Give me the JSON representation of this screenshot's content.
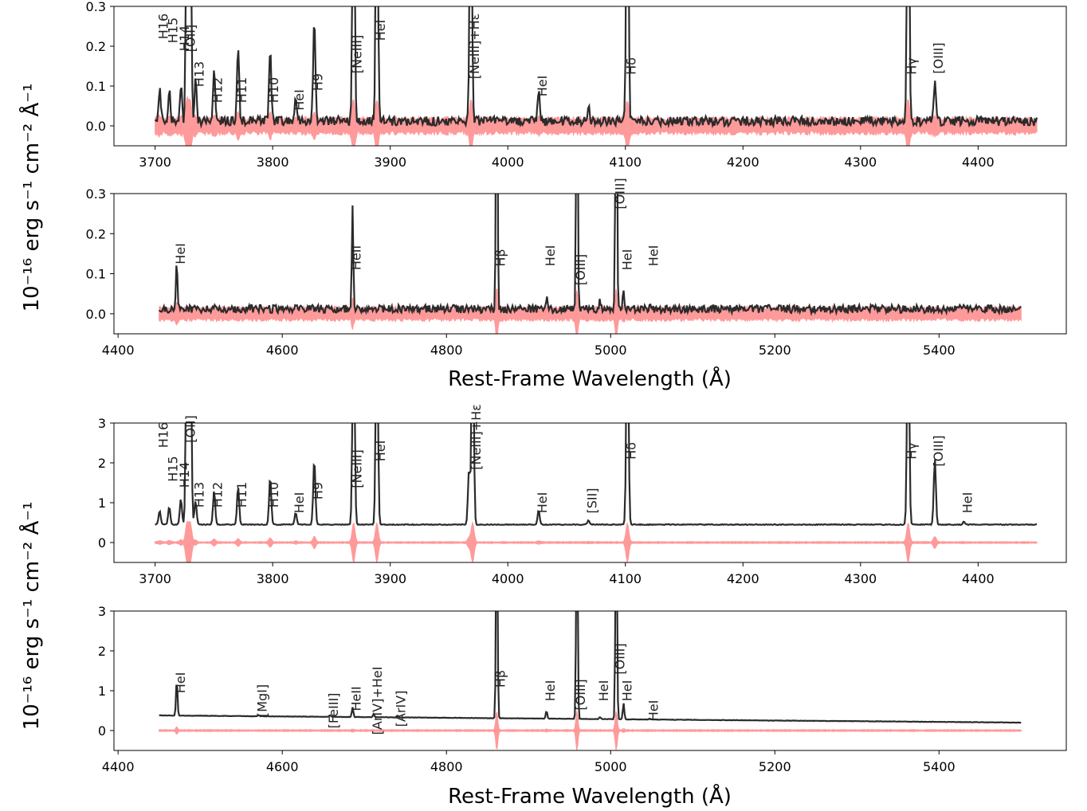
{
  "figure": {
    "ylabel": "10⁻¹⁶ erg s⁻¹ cm⁻² Å⁻¹",
    "xlabel": "Rest-Frame Wavelength (Å)"
  },
  "colors": {
    "spectrum": "#2b2b2b",
    "error": "#ff9a9a",
    "axes": "#000000",
    "background": "#ffffff"
  },
  "chart_data": [
    {
      "type": "line",
      "group": "top",
      "xlim": [
        3665,
        4475
      ],
      "ylim": [
        -0.05,
        0.3
      ],
      "xticks": [
        "3700",
        "3800",
        "3900",
        "4000",
        "4100",
        "4200",
        "4300",
        "4400"
      ],
      "yticks": [
        "0.0",
        "0.1",
        "0.2",
        "0.3"
      ],
      "continuum": 0.012,
      "noise": 0.012,
      "error_level": 0.018,
      "x_range": [
        3700,
        4450
      ],
      "lines": [
        {
          "label": "H16",
          "x": 3703.9,
          "peak": 0.085,
          "ly": 0.25
        },
        {
          "label": "H15",
          "x": 3712.0,
          "peak": 0.08,
          "ly": 0.24
        },
        {
          "label": "H14",
          "x": 3721.9,
          "peak": 0.09,
          "ly": 0.22
        },
        {
          "label": "[OII]",
          "x": 3727.1,
          "peak": 0.6,
          "ly": 0.22
        },
        {
          "label": "",
          "x": 3729.9,
          "peak": 0.6,
          "ly": 0
        },
        {
          "label": "H13",
          "x": 3734.4,
          "peak": 0.1,
          "ly": 0.13
        },
        {
          "label": "H12",
          "x": 3750.2,
          "peak": 0.12,
          "ly": 0.09
        },
        {
          "label": "H11",
          "x": 3770.6,
          "peak": 0.18,
          "ly": 0.09
        },
        {
          "label": "H10",
          "x": 3797.9,
          "peak": 0.18,
          "ly": 0.09
        },
        {
          "label": "HeI",
          "x": 3819.6,
          "peak": 0.05,
          "ly": 0.065
        },
        {
          "label": "H9",
          "x": 3835.4,
          "peak": 0.27,
          "ly": 0.11
        },
        {
          "label": "[NeIII]",
          "x": 3868.8,
          "peak": 0.8,
          "ly": 0.18
        },
        {
          "label": "HeI",
          "x": 3888.6,
          "peak": 0.8,
          "ly": 0.24
        },
        {
          "label": "[NeIII]+Hε",
          "x": 3968.5,
          "peak": 0.8,
          "ly": 0.2
        },
        {
          "label": "HeI",
          "x": 4026.2,
          "peak": 0.075,
          "ly": 0.1
        },
        {
          "label": "",
          "x": 4068.6,
          "peak": 0.035,
          "ly": 0
        },
        {
          "label": "Hδ",
          "x": 4101.7,
          "peak": 0.9,
          "ly": 0.15
        },
        {
          "label": "Hγ",
          "x": 4340.5,
          "peak": 0.9,
          "ly": 0.15
        },
        {
          "label": "[OIII]",
          "x": 4363.2,
          "peak": 0.105,
          "ly": 0.17
        }
      ]
    },
    {
      "type": "line",
      "group": "top",
      "xlim": [
        4395,
        5555
      ],
      "ylim": [
        -0.05,
        0.3
      ],
      "xticks": [
        "4400",
        "4600",
        "4800",
        "5000",
        "5200",
        "5400"
      ],
      "yticks": [
        "0.0",
        "0.1",
        "0.2",
        "0.3"
      ],
      "continuum": 0.012,
      "noise": 0.01,
      "error_level": 0.015,
      "x_range": [
        4450,
        5500
      ],
      "lines": [
        {
          "label": "HeI",
          "x": 4471.5,
          "peak": 0.12,
          "ly": 0.15
        },
        {
          "label": "HeII",
          "x": 4685.7,
          "peak": 0.26,
          "ly": 0.14
        },
        {
          "label": "Hβ",
          "x": 4861.3,
          "peak": 0.9,
          "ly": 0.14
        },
        {
          "label": "HeI",
          "x": 4921.9,
          "peak": 0.03,
          "ly": 0.145
        },
        {
          "label": "[OIII]",
          "x": 4958.9,
          "peak": 0.9,
          "ly": 0.11
        },
        {
          "label": "",
          "x": 4987.0,
          "peak": 0.03,
          "ly": 0
        },
        {
          "label": "HeI",
          "x": 5015.7,
          "peak": 0.05,
          "ly": 0.135
        },
        {
          "label": "[OIII]",
          "x": 5006.8,
          "peak": 0.9,
          "ly": 0.3
        },
        {
          "label": "HeI",
          "x": 5047.7,
          "peak": 0.02,
          "ly": 0.145
        }
      ]
    },
    {
      "type": "line",
      "group": "bottom",
      "xlim": [
        3665,
        4475
      ],
      "ylim": [
        -0.5,
        3
      ],
      "xticks": [
        "3700",
        "3800",
        "3900",
        "4000",
        "4100",
        "4200",
        "4300",
        "4400"
      ],
      "yticks": [
        "0",
        "1",
        "2",
        "3"
      ],
      "continuum": 0.45,
      "noise": 0.01,
      "error_level": 0.02,
      "x_range": [
        3700,
        4450
      ],
      "lines": [
        {
          "label": "H16",
          "x": 3703.9,
          "peak": 0.35,
          "ly": 2.7
        },
        {
          "label": "H15",
          "x": 3712.0,
          "peak": 0.45,
          "ly": 1.85
        },
        {
          "label": "H14",
          "x": 3721.9,
          "peak": 0.65,
          "ly": 1.7
        },
        {
          "label": "[OII]",
          "x": 3727.1,
          "peak": 6,
          "ly": 2.85
        },
        {
          "label": "",
          "x": 3729.9,
          "peak": 6,
          "ly": 0
        },
        {
          "label": "H13",
          "x": 3734.4,
          "peak": 0.6,
          "ly": 1.2
        },
        {
          "label": "H12",
          "x": 3750.2,
          "peak": 0.85,
          "ly": 1.2
        },
        {
          "label": "H11",
          "x": 3770.6,
          "peak": 0.95,
          "ly": 1.2
        },
        {
          "label": "H10",
          "x": 3797.9,
          "peak": 1.2,
          "ly": 1.2
        },
        {
          "label": "HeI",
          "x": 3819.6,
          "peak": 0.3,
          "ly": 1.0
        },
        {
          "label": "H9",
          "x": 3835.4,
          "peak": 1.65,
          "ly": 1.3
        },
        {
          "label": "[NeIII]",
          "x": 3868.8,
          "peak": 6,
          "ly": 1.85
        },
        {
          "label": "HeI",
          "x": 3888.6,
          "peak": 6,
          "ly": 2.3
        },
        {
          "label": "",
          "x": 3967.0,
          "peak": 1.4,
          "ly": 0
        },
        {
          "label": "[NeIII]+Hε",
          "x": 3970.1,
          "peak": 6,
          "ly": 2.65
        },
        {
          "label": "HeI",
          "x": 4026.2,
          "peak": 0.35,
          "ly": 1.0
        },
        {
          "label": "[SII]",
          "x": 4068.6,
          "peak": 0.1,
          "ly": 1.05
        },
        {
          "label": "Hδ",
          "x": 4101.7,
          "peak": 6,
          "ly": 2.3
        },
        {
          "label": "Hγ",
          "x": 4340.5,
          "peak": 6,
          "ly": 2.3
        },
        {
          "label": "[OIII]",
          "x": 4363.2,
          "peak": 1.65,
          "ly": 2.3
        },
        {
          "label": "HeI",
          "x": 4387.9,
          "peak": 0.07,
          "ly": 1.0
        }
      ]
    },
    {
      "type": "line",
      "group": "bottom",
      "xlim": [
        4395,
        5555
      ],
      "ylim": [
        -0.5,
        3
      ],
      "xticks": [
        "4400",
        "4600",
        "4800",
        "5000",
        "5200",
        "5400"
      ],
      "yticks": [
        "0",
        "1",
        "2",
        "3"
      ],
      "continuum": 0.38,
      "continuum_end": 0.2,
      "noise": 0.005,
      "error_level": 0.02,
      "x_range": [
        4450,
        5500
      ],
      "lines": [
        {
          "label": "HeI",
          "x": 4471.5,
          "peak": 0.9,
          "ly": 1.2
        },
        {
          "label": "[MgI]",
          "x": 4571.1,
          "peak": 0.03,
          "ly": 0.75
        },
        {
          "label": "[FeIII]",
          "x": 4658.1,
          "peak": 0.04,
          "ly": 0.5
        },
        {
          "label": "HeII",
          "x": 4685.7,
          "peak": 0.25,
          "ly": 0.8
        },
        {
          "label": "[ArIV]+HeI",
          "x": 4711.3,
          "peak": 0.08,
          "ly": 0.75
        },
        {
          "label": "[ArIV]",
          "x": 4740.2,
          "peak": 0.04,
          "ly": 0.55
        },
        {
          "label": "Hβ",
          "x": 4861.3,
          "peak": 6,
          "ly": 1.3
        },
        {
          "label": "HeI",
          "x": 4921.9,
          "peak": 0.2,
          "ly": 1.0
        },
        {
          "label": "[OIII]",
          "x": 4958.9,
          "peak": 6,
          "ly": 0.9
        },
        {
          "label": "HeI",
          "x": 4987.0,
          "peak": 0.05,
          "ly": 1.0
        },
        {
          "label": "[OIII]",
          "x": 5006.8,
          "peak": 6,
          "ly": 1.8
        },
        {
          "label": "HeI",
          "x": 5015.7,
          "peak": 0.4,
          "ly": 1.0
        },
        {
          "label": "HeI",
          "x": 5047.7,
          "peak": 0.02,
          "ly": 0.5
        }
      ]
    }
  ]
}
